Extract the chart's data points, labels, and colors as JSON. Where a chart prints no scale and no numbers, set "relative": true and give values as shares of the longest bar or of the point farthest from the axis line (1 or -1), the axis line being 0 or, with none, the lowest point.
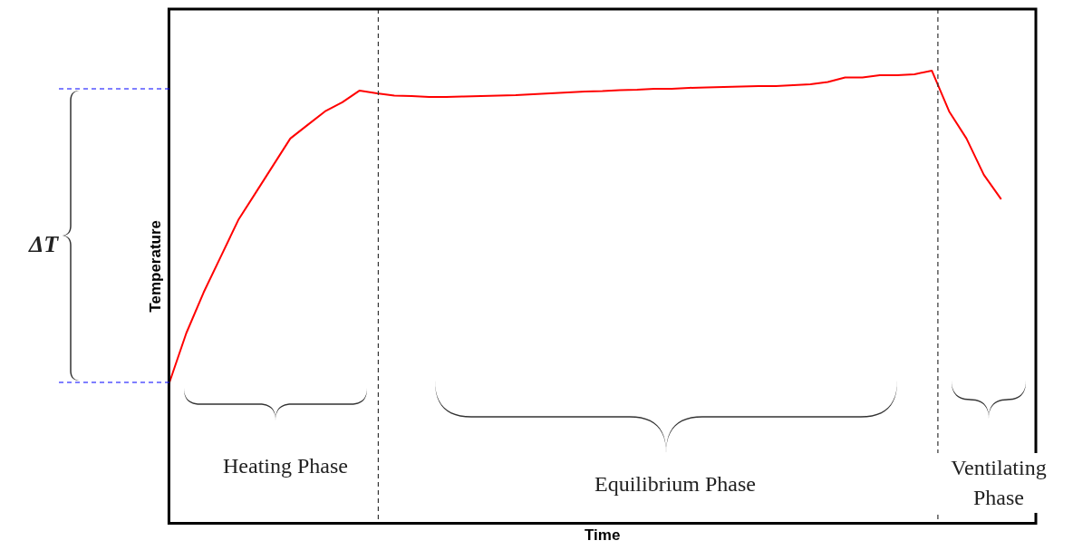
{
  "chart_data": {
    "type": "line",
    "relative": true,
    "xlabel": "Time",
    "ylabel": "Temperature",
    "categories": [
      null,
      null,
      null,
      null,
      null,
      null,
      null,
      null,
      null,
      null,
      null,
      null,
      null,
      null,
      null,
      null,
      null,
      null,
      null,
      null,
      null,
      null,
      null,
      null,
      null,
      null,
      null,
      null,
      null,
      null,
      null,
      null,
      null,
      null,
      null,
      null,
      null,
      null,
      null,
      null,
      null,
      null,
      null,
      null,
      null,
      null,
      null,
      null,
      null,
      null,
      null
    ],
    "series": [
      {
        "color": "#ff0000",
        "values": [
          0.308,
          0.42,
          0.51,
          0.59,
          0.67,
          0.73,
          0.79,
          0.85,
          0.88,
          0.91,
          0.93,
          0.956,
          0.95,
          0.945,
          0.944,
          0.942,
          0.942,
          0.943,
          0.944,
          0.945,
          0.946,
          0.948,
          0.95,
          0.952,
          0.954,
          0.955,
          0.957,
          0.958,
          0.96,
          0.96,
          0.962,
          0.963,
          0.964,
          0.965,
          0.966,
          0.966,
          0.968,
          0.97,
          0.975,
          0.985,
          0.985,
          0.99,
          0.99,
          0.992,
          1,
          0.91,
          0.85,
          0.77,
          0.716,
          null,
          null
        ]
      }
    ],
    "grid": false,
    "legend": false,
    "tick_labels": false,
    "marker": "none",
    "line_style": "solid",
    "annotations": [
      "ΔT",
      "Heating Phase",
      "Equilibrium Phase",
      "Ventilating Phase"
    ]
  }
}
